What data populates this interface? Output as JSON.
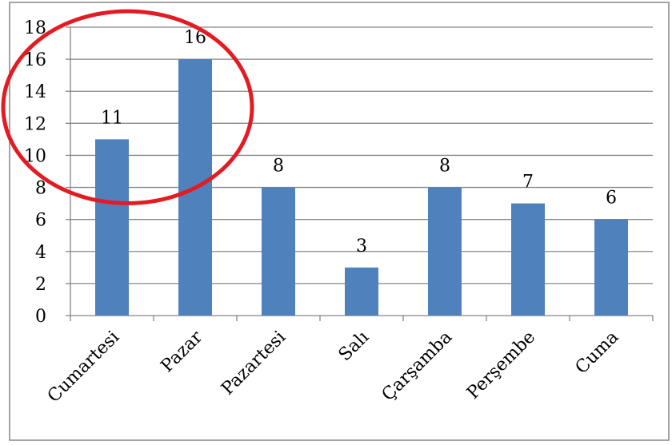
{
  "chart_data": {
    "type": "bar",
    "categories": [
      "Cumartesi",
      "Pazar",
      "Pazartesi",
      "Salı",
      "Çarşamba",
      "Perşembe",
      "Cuma"
    ],
    "values": [
      11,
      16,
      8,
      3,
      8,
      7,
      6
    ],
    "ylim": [
      0,
      18
    ],
    "yticks": [
      0,
      2,
      4,
      6,
      8,
      10,
      12,
      14,
      16,
      18
    ],
    "grid": true,
    "legend": "none",
    "annotations": [
      {
        "type": "ellipse",
        "color": "#e31b23",
        "highlights": [
          "Cumartesi",
          "Pazar"
        ]
      }
    ]
  },
  "colors": {
    "bar": "#4f81bd",
    "grid": "#868686",
    "axis": "#868686",
    "frame": "#868686",
    "highlight": "#e31b23"
  }
}
